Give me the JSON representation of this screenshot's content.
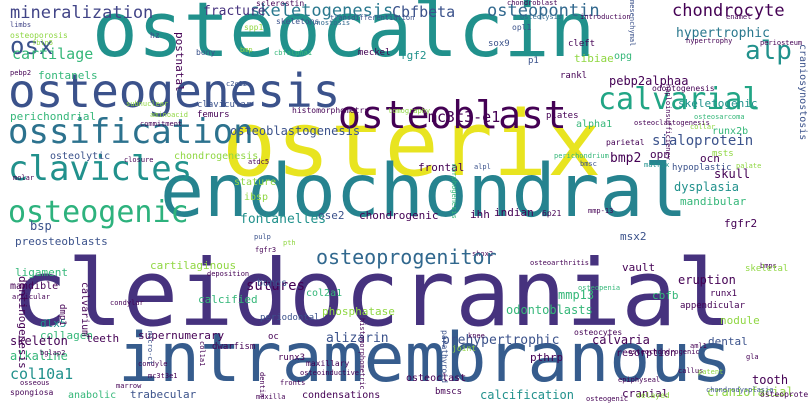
{
  "palette": {
    "dark_purple": "#440154",
    "indigo": "#3b528b",
    "blue": "#31688e",
    "teal": "#21918c",
    "green": "#35b779",
    "lime": "#90d743",
    "yellow": "#fde725"
  },
  "words": [
    {
      "text": "osteocalcin",
      "color": "#21918c"
    },
    {
      "text": "osterix",
      "color": "#e8e420"
    },
    {
      "text": "endochondral",
      "color": "#26838f"
    },
    {
      "text": "cleidocranial",
      "color": "#46327e"
    },
    {
      "text": "intramembranous",
      "color": "#365c8d"
    },
    {
      "text": "osteogenesis",
      "color": "#3b528b"
    },
    {
      "text": "osteoblast",
      "color": "#440154"
    },
    {
      "text": "ossification",
      "color": "#2c728e"
    },
    {
      "text": "clavicles",
      "color": "#21918c"
    },
    {
      "text": "osteogenic",
      "color": "#2db27d"
    },
    {
      "text": "calvarial",
      "color": "#21a585"
    },
    {
      "text": "alp",
      "color": "#21918c"
    },
    {
      "text": "osx",
      "color": "#3b528b"
    },
    {
      "text": "mineralization",
      "color": "#414487"
    },
    {
      "text": "skeletogenesis",
      "color": "#2a788e"
    },
    {
      "text": "osteopontin",
      "color": "#31688e"
    },
    {
      "text": "chondrocyte",
      "color": "#440154"
    },
    {
      "text": "hypertrophic",
      "color": "#2a788e"
    },
    {
      "text": "cartilage",
      "color": "#35b779"
    },
    {
      "text": "osteoporosis",
      "color": "#8fd744"
    },
    {
      "text": "fracture",
      "color": "#46327e"
    },
    {
      "text": "Cbfbeta",
      "color": "#3b528b"
    },
    {
      "text": "spp1",
      "color": "#90d743"
    },
    {
      "text": "sclerostin",
      "color": "#440154"
    },
    {
      "text": "skeletons",
      "color": "#3b528b"
    },
    {
      "text": "transdifferentiation",
      "color": "#3b528b"
    },
    {
      "text": "chondroblast",
      "color": "#440154"
    },
    {
      "text": "osteolysis",
      "color": "#31688e"
    },
    {
      "text": "introduction",
      "color": "#440154"
    },
    {
      "text": "mesenchymal",
      "color": "#3b528b"
    },
    {
      "text": "enamel",
      "color": "#440154"
    },
    {
      "text": "limbs",
      "color": "#414487"
    },
    {
      "text": "fbln5",
      "color": "#90d743"
    },
    {
      "text": "hz",
      "color": "#414487"
    },
    {
      "text": "synostosis",
      "color": "#31688e"
    },
    {
      "text": "sox9",
      "color": "#3b528b"
    },
    {
      "text": "opl1",
      "color": "#3b528b"
    },
    {
      "text": "cleft",
      "color": "#440154"
    },
    {
      "text": "tibiae",
      "color": "#90d743"
    },
    {
      "text": "hypertrophy",
      "color": "#440154"
    },
    {
      "text": "periosteum",
      "color": "#440154"
    },
    {
      "text": "fontanels",
      "color": "#35b779"
    },
    {
      "text": "pebp2",
      "color": "#440154"
    },
    {
      "text": "bony",
      "color": "#3b528b"
    },
    {
      "text": "bmp",
      "color": "#90d743"
    },
    {
      "text": "cbfalpha1",
      "color": "#35b779"
    },
    {
      "text": "meckel",
      "color": "#440154"
    },
    {
      "text": "fgf2",
      "color": "#21918c"
    },
    {
      "text": "p1",
      "color": "#3b528b"
    },
    {
      "text": "opg",
      "color": "#35b779"
    },
    {
      "text": "subnuclear",
      "color": "#90d743"
    },
    {
      "text": "clavicular",
      "color": "#3b528b"
    },
    {
      "text": "c2c12",
      "color": "#3b528b"
    },
    {
      "text": "histomorphometry",
      "color": "#440154"
    },
    {
      "text": "tomography",
      "color": "#90d743"
    },
    {
      "text": "rankl",
      "color": "#440154"
    },
    {
      "text": "pebp2alphaa",
      "color": "#440154"
    },
    {
      "text": "skeletogenic",
      "color": "#21918c"
    },
    {
      "text": "aminoacid",
      "color": "#90d743"
    },
    {
      "text": "femurs",
      "color": "#440154"
    },
    {
      "text": "commitment",
      "color": "#440154"
    },
    {
      "text": "osteoblastogenesis",
      "color": "#3b528b"
    },
    {
      "text": "alpha1",
      "color": "#35b779"
    },
    {
      "text": "odontogenesis",
      "color": "#440154"
    },
    {
      "text": "osteosarcoma",
      "color": "#35b779"
    },
    {
      "text": "perichondrial",
      "color": "#35b779"
    },
    {
      "text": "mc3t3-e1",
      "color": "#440154"
    },
    {
      "text": "plates",
      "color": "#440154"
    },
    {
      "text": "osteoclastogenesis",
      "color": "#440154"
    },
    {
      "text": "collar",
      "color": "#90d743"
    },
    {
      "text": "runx2b",
      "color": "#35b779"
    },
    {
      "text": "sialoprotein",
      "color": "#3b528b"
    },
    {
      "text": "osteolytic",
      "color": "#3b528b"
    },
    {
      "text": "chondrogenesis",
      "color": "#90d743"
    },
    {
      "text": "molar",
      "color": "#440154"
    },
    {
      "text": "closure",
      "color": "#440154"
    },
    {
      "text": "frontal",
      "color": "#440154"
    },
    {
      "text": "alpl",
      "color": "#3b528b"
    },
    {
      "text": "parietal",
      "color": "#440154"
    },
    {
      "text": "bmp2",
      "color": "#440154"
    },
    {
      "text": "ocn",
      "color": "#440154"
    },
    {
      "text": "opn",
      "color": "#440154"
    },
    {
      "text": "msts",
      "color": "#90d743"
    },
    {
      "text": "hypoplastic",
      "color": "#3b528b"
    },
    {
      "text": "skull",
      "color": "#440154"
    },
    {
      "text": "dysplasia",
      "color": "#21918c"
    },
    {
      "text": "stature",
      "color": "#90d743"
    },
    {
      "text": "ibsp",
      "color": "#90d743"
    },
    {
      "text": "atdc5",
      "color": "#440154"
    },
    {
      "text": "bmsc",
      "color": "#3b528b"
    },
    {
      "text": "matrix",
      "color": "#21918c"
    },
    {
      "text": "palate",
      "color": "#90d743"
    },
    {
      "text": "mandibular",
      "color": "#35b779"
    },
    {
      "text": "bsp",
      "color": "#3b528b"
    },
    {
      "text": "ose2",
      "color": "#3b528b"
    },
    {
      "text": "chondrogenic",
      "color": "#440154"
    },
    {
      "text": "ihh",
      "color": "#440154"
    },
    {
      "text": "indian",
      "color": "#440154"
    },
    {
      "text": "6p21",
      "color": "#440154"
    },
    {
      "text": "mmp-13",
      "color": "#440154"
    },
    {
      "text": "fontanelles",
      "color": "#21918c"
    },
    {
      "text": "pulp",
      "color": "#3b528b"
    },
    {
      "text": "pth",
      "color": "#90d743"
    },
    {
      "text": "fgfr3",
      "color": "#440154"
    },
    {
      "text": "msx2",
      "color": "#3b528b"
    },
    {
      "text": "fgfr2",
      "color": "#440154"
    },
    {
      "text": "preosteoblasts",
      "color": "#3b528b"
    },
    {
      "text": "cartilaginous",
      "color": "#90d743"
    },
    {
      "text": "deposition",
      "color": "#440154"
    },
    {
      "text": "shox2",
      "color": "#440154"
    },
    {
      "text": "osteoarthritis",
      "color": "#440154"
    },
    {
      "text": "bmps",
      "color": "#440154"
    },
    {
      "text": "ligament",
      "color": "#35b779"
    },
    {
      "text": "col2a1",
      "color": "#35b779"
    },
    {
      "text": "osteoprogenitor",
      "color": "#31688e"
    },
    {
      "text": "sutures",
      "color": "#440154"
    },
    {
      "text": "vault",
      "color": "#440154"
    },
    {
      "text": "eruption",
      "color": "#440154"
    },
    {
      "text": "runx1",
      "color": "#440154"
    },
    {
      "text": "skeletal",
      "color": "#90d743"
    },
    {
      "text": "mandible",
      "color": "#440154"
    },
    {
      "text": "bones",
      "color": "#3b528b"
    },
    {
      "text": "calcified",
      "color": "#35b779"
    },
    {
      "text": "phosphatase",
      "color": "#90d743"
    },
    {
      "text": "mmp13",
      "color": "#35b779"
    },
    {
      "text": "cbfb",
      "color": "#35b779"
    },
    {
      "text": "appendicular",
      "color": "#440154"
    },
    {
      "text": "nodule",
      "color": "#90d743"
    },
    {
      "text": "periodontal",
      "color": "#3b528b"
    },
    {
      "text": "odontoblasts",
      "color": "#35b779"
    },
    {
      "text": "dlx5",
      "color": "#21918c"
    },
    {
      "text": "collagen",
      "color": "#35b779"
    },
    {
      "text": "dwarfism",
      "color": "#440154"
    },
    {
      "text": "oc",
      "color": "#440154"
    },
    {
      "text": "parathyroid",
      "color": "#3b528b"
    },
    {
      "text": "osteoclast",
      "color": "#440154"
    },
    {
      "text": "osteocytes",
      "color": "#440154"
    },
    {
      "text": "skeleton",
      "color": "#440154"
    },
    {
      "text": "teeth",
      "color": "#440154"
    },
    {
      "text": "supernumerary",
      "color": "#440154"
    },
    {
      "text": "alizarin",
      "color": "#3b528b"
    },
    {
      "text": "prehypertrophic",
      "color": "#3b528b"
    },
    {
      "text": "calvaria",
      "color": "#440154"
    },
    {
      "text": "resorption",
      "color": "#440154"
    },
    {
      "text": "dental",
      "color": "#3b528b"
    },
    {
      "text": "alkaline",
      "color": "#35b779"
    },
    {
      "text": "col10a1",
      "color": "#21918c"
    },
    {
      "text": "runx3",
      "color": "#440154"
    },
    {
      "text": "pthrp",
      "color": "#440154"
    },
    {
      "text": "tooth",
      "color": "#440154"
    },
    {
      "text": "anabolic",
      "color": "#35b779"
    },
    {
      "text": "trabecular",
      "color": "#3b528b"
    },
    {
      "text": "condensations",
      "color": "#440154"
    },
    {
      "text": "calcification",
      "color": "#21918c"
    },
    {
      "text": "cranial",
      "color": "#440154"
    },
    {
      "text": "craniofacial",
      "color": "#90d743"
    },
    {
      "text": "spongiosa",
      "color": "#440154"
    },
    {
      "text": "bmscs",
      "color": "#440154"
    },
    {
      "text": "osteoinductive",
      "color": "#440154"
    },
    {
      "text": "mc3t3e1",
      "color": "#440154"
    },
    {
      "text": "fronts",
      "color": "#440154"
    },
    {
      "text": "maxilla",
      "color": "#440154"
    },
    {
      "text": "delayed",
      "color": "#90d743"
    },
    {
      "text": "osteoprotegerin",
      "color": "#440154"
    },
    {
      "text": "osseous",
      "color": "#440154"
    },
    {
      "text": "maxillary",
      "color": "#440154"
    },
    {
      "text": "bglap2",
      "color": "#440154"
    },
    {
      "text": "condyle",
      "color": "#440154"
    },
    {
      "text": "callus",
      "color": "#440154"
    },
    {
      "text": "marrow",
      "color": "#440154"
    },
    {
      "text": "articular",
      "color": "#440154"
    },
    {
      "text": "condylar",
      "color": "#440154"
    },
    {
      "text": "patent",
      "color": "#90d743"
    },
    {
      "text": "osteogenic",
      "color": "#440154"
    },
    {
      "text": "aml1",
      "color": "#440154"
    },
    {
      "text": "epiphyseal",
      "color": "#440154"
    },
    {
      "text": "osteochondrogenic",
      "color": "#440154"
    },
    {
      "text": "gla",
      "color": "#440154"
    },
    {
      "text": "joint",
      "color": "#90d743"
    },
    {
      "text": "knee",
      "color": "#440154"
    },
    {
      "text": "perichondrium",
      "color": "#35b779"
    },
    {
      "text": "osteopenia",
      "color": "#35b779"
    },
    {
      "text": "chondrodysplasia",
      "color": "#3b528b"
    },
    {
      "text": "dentinogenesis",
      "color": "#440154"
    },
    {
      "text": "calvarium",
      "color": "#440154"
    },
    {
      "text": "dmp1",
      "color": "#440154"
    },
    {
      "text": "micro-ct",
      "color": "#3b528b"
    },
    {
      "text": "dentin",
      "color": "#440154"
    },
    {
      "text": "col1a1",
      "color": "#440154"
    },
    {
      "text": "histomorphometric",
      "color": "#440154"
    },
    {
      "text": "morphogenesis",
      "color": "#35b779"
    },
    {
      "text": "craniosynostosis",
      "color": "#3b528b"
    },
    {
      "text": "haploinsufficiency",
      "color": "#440154"
    },
    {
      "text": "postnatal",
      "color": "#440154"
    }
  ]
}
